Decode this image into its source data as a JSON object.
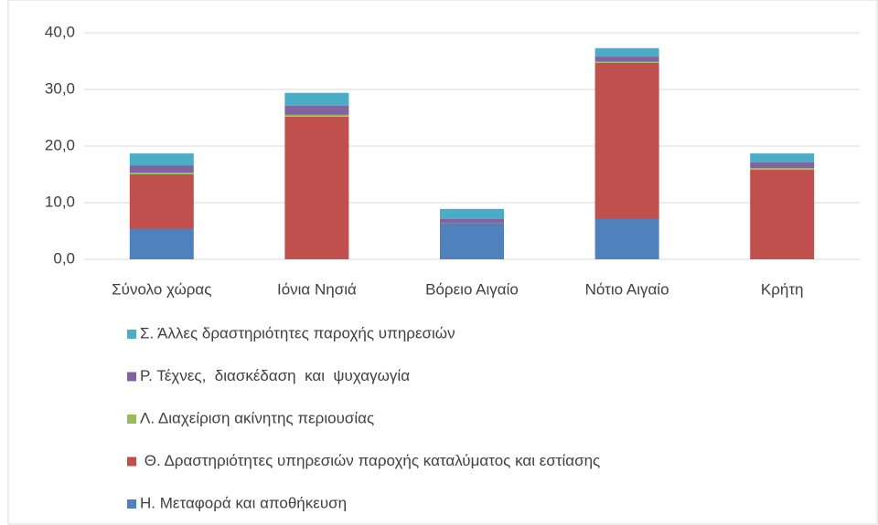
{
  "chart_data": {
    "type": "stacked_bar",
    "categories": [
      "Σύνολο χώρας",
      "Ιόνια Νησιά",
      "Βόρειο Αιγαίο",
      "Νότιο Αιγαίο",
      "Κρήτη"
    ],
    "series": [
      {
        "name": "Η. Μεταφορά και αποθήκευση",
        "color": "#4f81bd",
        "values": [
          5.4,
          0,
          6.4,
          7.1,
          0
        ]
      },
      {
        "name": " Θ. Δραστηριότητες υπηρεσιών παροχής καταλύματος και εστίασης",
        "color": "#c0504d",
        "values": [
          9.6,
          25.2,
          0.2,
          27.6,
          15.8
        ]
      },
      {
        "name": "Λ. Διαχείριση ακίνητης περιουσίας",
        "color": "#9bbb59",
        "values": [
          0.3,
          0.3,
          0,
          0.2,
          0.3
        ]
      },
      {
        "name": "Ρ. Τέχνες,  διασκέδαση  και  ψυχαγωγία",
        "color": "#8064a2",
        "values": [
          1.3,
          1.6,
          0.5,
          0.9,
          1.0
        ]
      },
      {
        "name": "Σ. Άλλες δραστηριότητες παροχής υπηρεσιών",
        "color": "#4bacc6",
        "values": [
          2.1,
          2.3,
          1.8,
          1.5,
          1.6
        ]
      }
    ],
    "ylim": [
      0,
      40
    ],
    "yticks": [
      {
        "value": 0,
        "label": "0,0"
      },
      {
        "value": 10,
        "label": "10,0"
      },
      {
        "value": 20,
        "label": "20,0"
      },
      {
        "value": 30,
        "label": "30,0"
      },
      {
        "value": 40,
        "label": "40,0"
      }
    ],
    "grid": true
  }
}
